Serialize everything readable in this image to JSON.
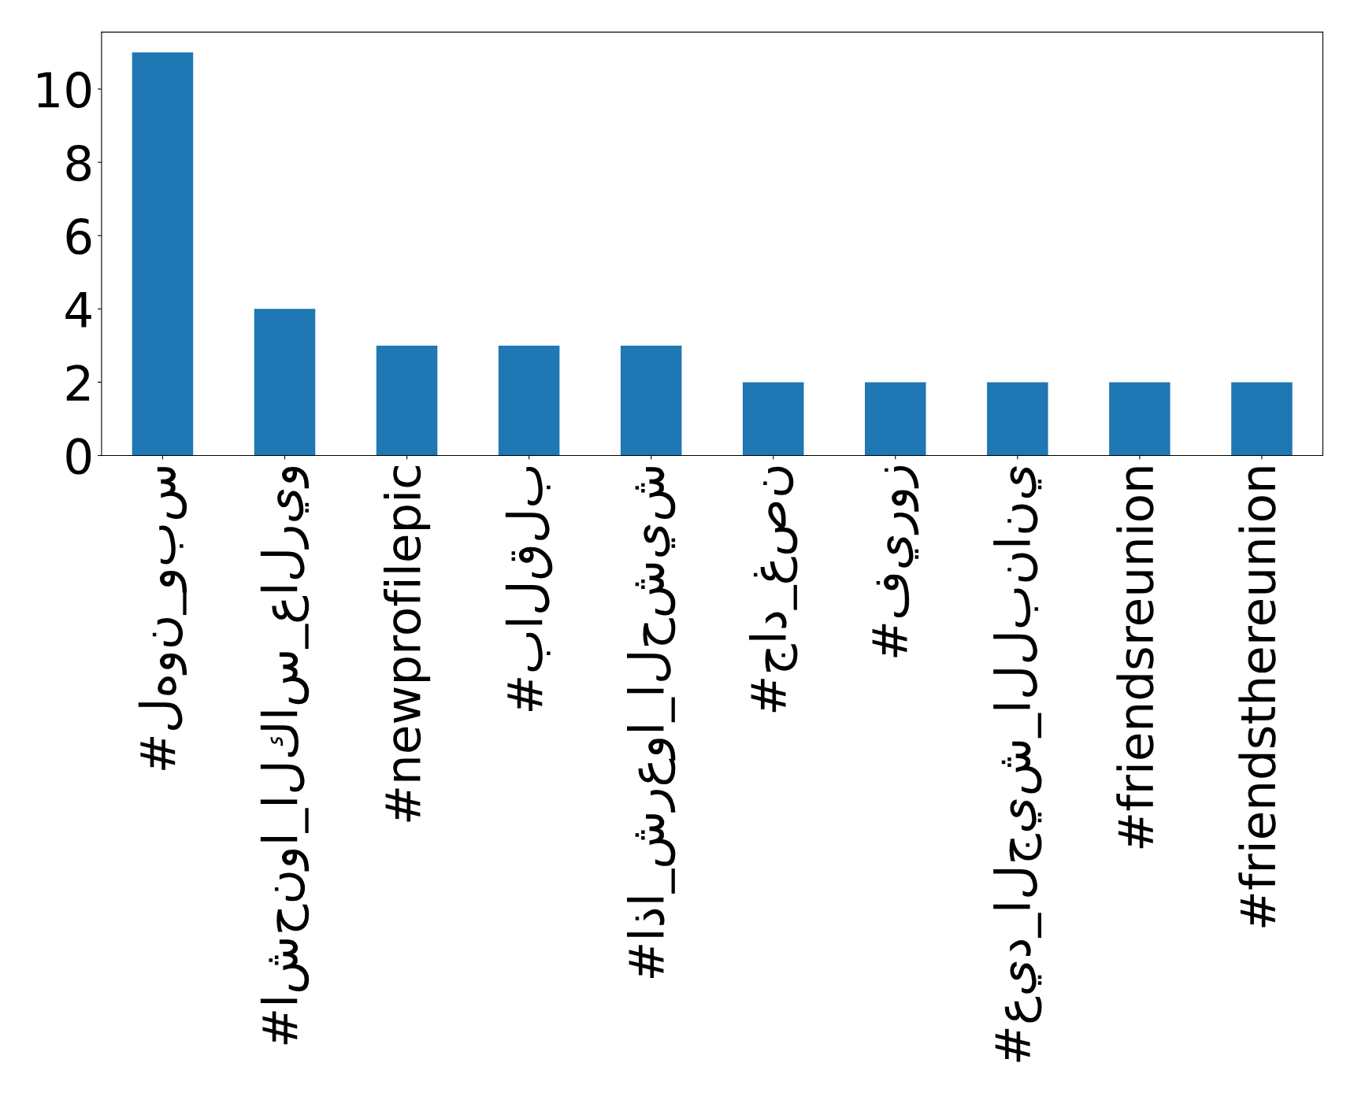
{
  "chart_data": {
    "type": "bar",
    "categories": [
      "#لهون_وبس",
      "#اشحنوا_الكاس_عالريو",
      "#newprofilepic",
      "#بالقلب",
      "#اذا_شرعوا_الحشيش",
      "#جاد_غصن",
      "#فيروز",
      "#عيد_الجيش_اللبناني",
      "#friendsreunion",
      "#friendsthereunion"
    ],
    "values": [
      11,
      4,
      3,
      3,
      3,
      2,
      2,
      2,
      2,
      2
    ],
    "color": "#1f77b4",
    "ylim": [
      0,
      11.55
    ],
    "yticks": [
      0,
      2,
      4,
      6,
      8,
      10
    ],
    "grid": false,
    "legend": false
  }
}
